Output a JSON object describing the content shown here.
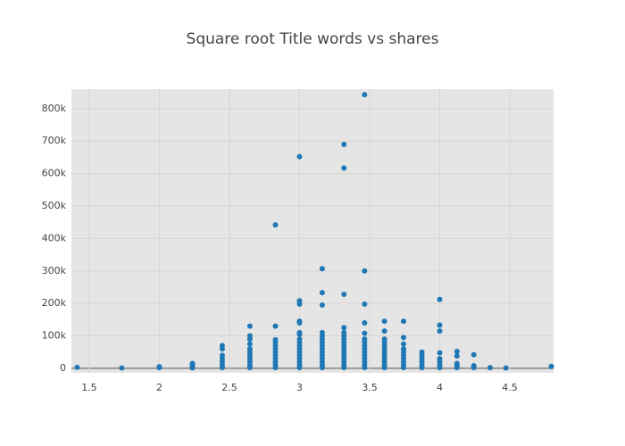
{
  "chart_data": {
    "type": "scatter",
    "title": "Square root Title words vs shares",
    "color": "#1f77b4",
    "grid": true,
    "xlim": [
      1.373,
      4.812
    ],
    "ylim": [
      -14000,
      860000
    ],
    "xticks": [
      1.5,
      2,
      2.5,
      3,
      3.5,
      4,
      4.5
    ],
    "yticks": [
      0,
      {
        "value": 100000,
        "label": "100k"
      },
      {
        "value": 200000,
        "label": "200k"
      },
      {
        "value": 300000,
        "label": "300k"
      },
      {
        "value": 400000,
        "label": "400k"
      },
      {
        "value": 500000,
        "label": "500k"
      },
      {
        "value": 600000,
        "label": "600k"
      },
      {
        "value": 700000,
        "label": "700k"
      },
      {
        "value": 800000,
        "label": "800k"
      }
    ],
    "x": [
      1.414,
      1.732,
      2,
      2,
      2.236,
      2.236,
      2.236,
      2.236,
      2.449,
      2.449,
      2.449,
      2.449,
      2.449,
      2.449,
      2.449,
      2.646,
      2.646,
      2.646,
      2.646,
      2.646,
      2.646,
      2.646,
      2.646,
      2.646,
      2.646,
      2.646,
      2.828,
      2.828,
      2.828,
      2.828,
      2.828,
      2.828,
      2.828,
      2.828,
      2.828,
      2.828,
      2.828,
      2.828,
      3,
      3,
      3,
      3,
      3,
      3,
      3,
      3,
      3,
      3,
      3,
      3,
      3,
      3,
      3,
      3,
      3,
      3.162,
      3.162,
      3.162,
      3.162,
      3.162,
      3.162,
      3.162,
      3.162,
      3.162,
      3.162,
      3.162,
      3.162,
      3.162,
      3.162,
      3.162,
      3.317,
      3.317,
      3.317,
      3.317,
      3.317,
      3.317,
      3.317,
      3.317,
      3.317,
      3.317,
      3.317,
      3.317,
      3.317,
      3.317,
      3.317,
      3.317,
      3.464,
      3.464,
      3.464,
      3.464,
      3.464,
      3.464,
      3.464,
      3.464,
      3.464,
      3.464,
      3.464,
      3.464,
      3.464,
      3.464,
      3.464,
      3.606,
      3.606,
      3.606,
      3.606,
      3.606,
      3.606,
      3.606,
      3.606,
      3.606,
      3.606,
      3.606,
      3.606,
      3.742,
      3.742,
      3.742,
      3.742,
      3.742,
      3.742,
      3.742,
      3.742,
      3.742,
      3.742,
      3.873,
      3.873,
      3.873,
      3.873,
      3.873,
      3.873,
      4,
      4,
      4,
      4,
      4,
      4,
      4,
      4,
      4.123,
      4.123,
      4.123,
      4.123,
      4.123,
      4.243,
      4.243,
      4.243,
      4.359,
      4.472,
      4.796
    ],
    "values": [
      3000,
      1000,
      2000,
      5000,
      1000,
      5000,
      10000,
      15000,
      2000,
      10000,
      20000,
      30000,
      40000,
      60000,
      70000,
      2000,
      10000,
      20000,
      30000,
      40000,
      50000,
      60000,
      75000,
      90000,
      100000,
      130000,
      2000,
      10000,
      20000,
      30000,
      40000,
      50000,
      60000,
      70000,
      80000,
      88000,
      130000,
      442000,
      2000,
      10000,
      20000,
      30000,
      40000,
      50000,
      60000,
      70000,
      80000,
      90000,
      105000,
      110000,
      140000,
      145000,
      198000,
      208000,
      652000,
      2000,
      10000,
      20000,
      30000,
      40000,
      50000,
      60000,
      70000,
      80000,
      90000,
      100000,
      110000,
      195000,
      233000,
      307000,
      2000,
      10000,
      20000,
      30000,
      40000,
      50000,
      60000,
      70000,
      80000,
      90000,
      100000,
      110000,
      125000,
      228000,
      617000,
      690000,
      2000,
      10000,
      20000,
      30000,
      40000,
      50000,
      60000,
      70000,
      80000,
      90000,
      108000,
      140000,
      198000,
      300000,
      843000,
      2000,
      10000,
      20000,
      30000,
      40000,
      50000,
      60000,
      70000,
      80000,
      90000,
      115000,
      145000,
      2000,
      10000,
      20000,
      30000,
      40000,
      50000,
      60000,
      75000,
      95000,
      145000,
      2000,
      10000,
      20000,
      30000,
      40000,
      50000,
      2000,
      10000,
      20000,
      30000,
      48000,
      115000,
      133000,
      212000,
      2000,
      10000,
      15000,
      38000,
      52000,
      2000,
      8000,
      42000,
      2000,
      1000,
      6000
    ]
  }
}
